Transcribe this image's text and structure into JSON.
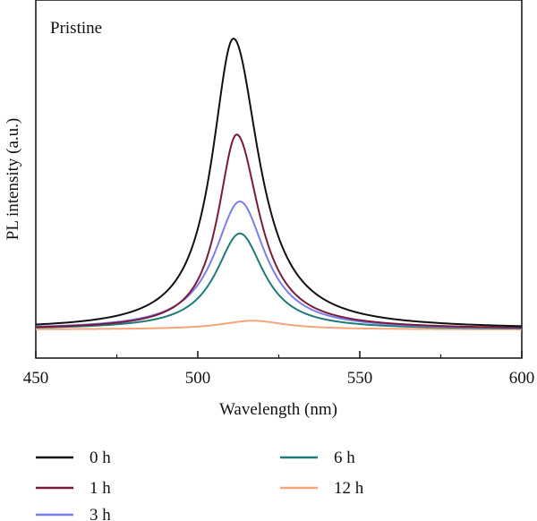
{
  "chart_data": {
    "type": "line",
    "annotation": "Pristine",
    "xlabel": "Wavelength (nm)",
    "ylabel": "PL intensity (a.u.)",
    "xlim": [
      450,
      600
    ],
    "ylim": [
      0,
      1.1
    ],
    "xticks": [
      450,
      500,
      550,
      600
    ],
    "xtick_labels": [
      "450",
      "500",
      "550",
      "600"
    ],
    "grid": false,
    "legend_position": "bottom",
    "series": [
      {
        "name": "0 h",
        "color": "#111111",
        "peak_x": 511.0,
        "peak_y": 1.0,
        "baseline": 0.0,
        "width_left": 8.0,
        "width_right": 9.5
      },
      {
        "name": "1 h",
        "color": "#7a1b3c",
        "peak_x": 512.0,
        "peak_y": 0.67,
        "baseline": 0.0,
        "width_left": 7.0,
        "width_right": 8.5
      },
      {
        "name": "3 h",
        "color": "#7b7ee8",
        "peak_x": 513.0,
        "peak_y": 0.44,
        "baseline": 0.0,
        "width_left": 9.5,
        "width_right": 9.5
      },
      {
        "name": "6 h",
        "color": "#1f7a7a",
        "peak_x": 513.0,
        "peak_y": 0.33,
        "baseline": 0.0,
        "width_left": 9.0,
        "width_right": 9.0
      },
      {
        "name": "12 h",
        "color": "#f4a57a",
        "peak_x": 517.0,
        "peak_y": 0.03,
        "baseline": 0.0,
        "width_left": 12.0,
        "width_right": 12.0
      }
    ]
  }
}
